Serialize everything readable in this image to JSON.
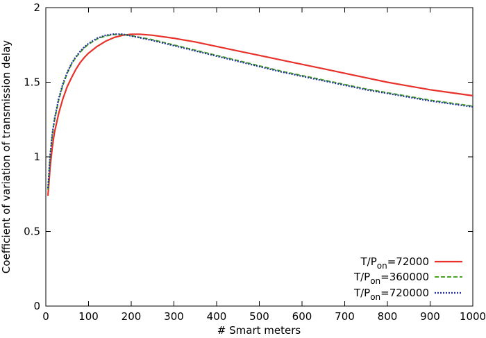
{
  "chart_data": {
    "type": "line",
    "title": "",
    "xlabel": "# Smart meters",
    "ylabel": "Coefficient of variation of transmission delay",
    "xlim": [
      0,
      1000
    ],
    "ylim": [
      0,
      2
    ],
    "xticks": [
      0,
      100,
      200,
      300,
      400,
      500,
      600,
      700,
      800,
      900,
      1000
    ],
    "yticks": [
      0,
      0.5,
      1,
      1.5,
      2
    ],
    "ytick_labels": [
      "0",
      "0.5",
      "1",
      "1.5",
      "2"
    ],
    "grid": false,
    "legend_position": "bottom-right",
    "series": [
      {
        "legend": {
          "pre": "T/P",
          "sub": "on",
          "post": "=72000"
        },
        "color": "#e8312a",
        "style": "solid",
        "x": [
          5,
          10,
          15,
          20,
          30,
          40,
          50,
          60,
          70,
          80,
          90,
          100,
          120,
          140,
          160,
          180,
          200,
          220,
          250,
          300,
          350,
          400,
          450,
          500,
          550,
          600,
          650,
          700,
          750,
          800,
          850,
          900,
          950,
          1000
        ],
        "y": [
          0.74,
          0.93,
          1.06,
          1.16,
          1.29,
          1.39,
          1.47,
          1.53,
          1.585,
          1.63,
          1.665,
          1.695,
          1.74,
          1.775,
          1.8,
          1.815,
          1.822,
          1.822,
          1.815,
          1.795,
          1.77,
          1.74,
          1.71,
          1.68,
          1.65,
          1.62,
          1.59,
          1.56,
          1.53,
          1.5,
          1.475,
          1.45,
          1.43,
          1.41
        ]
      },
      {
        "legend": {
          "pre": "T/P",
          "sub": "on",
          "post": "=360000"
        },
        "color": "#47a522",
        "style": "dashed",
        "x": [
          5,
          10,
          15,
          20,
          30,
          40,
          50,
          60,
          70,
          80,
          90,
          100,
          120,
          140,
          160,
          180,
          200,
          250,
          300,
          350,
          400,
          450,
          500,
          550,
          600,
          650,
          700,
          750,
          800,
          850,
          900,
          950,
          1000
        ],
        "y": [
          0.78,
          1.0,
          1.14,
          1.24,
          1.38,
          1.48,
          1.56,
          1.62,
          1.665,
          1.7,
          1.73,
          1.755,
          1.79,
          1.81,
          1.82,
          1.82,
          1.812,
          1.785,
          1.75,
          1.715,
          1.68,
          1.645,
          1.61,
          1.575,
          1.545,
          1.515,
          1.485,
          1.455,
          1.43,
          1.405,
          1.38,
          1.36,
          1.34
        ]
      },
      {
        "legend": {
          "pre": "T/P",
          "sub": "on",
          "post": "=720000"
        },
        "color": "#1f2e9a",
        "style": "dotted",
        "x": [
          5,
          10,
          15,
          20,
          30,
          40,
          50,
          60,
          70,
          80,
          90,
          100,
          120,
          140,
          160,
          180,
          200,
          250,
          300,
          350,
          400,
          450,
          500,
          550,
          600,
          650,
          700,
          750,
          800,
          850,
          900,
          950,
          1000
        ],
        "y": [
          0.79,
          1.01,
          1.15,
          1.25,
          1.39,
          1.49,
          1.565,
          1.625,
          1.67,
          1.705,
          1.735,
          1.76,
          1.795,
          1.815,
          1.823,
          1.822,
          1.81,
          1.78,
          1.745,
          1.71,
          1.675,
          1.64,
          1.605,
          1.57,
          1.54,
          1.51,
          1.48,
          1.45,
          1.425,
          1.4,
          1.375,
          1.355,
          1.335
        ]
      }
    ]
  }
}
